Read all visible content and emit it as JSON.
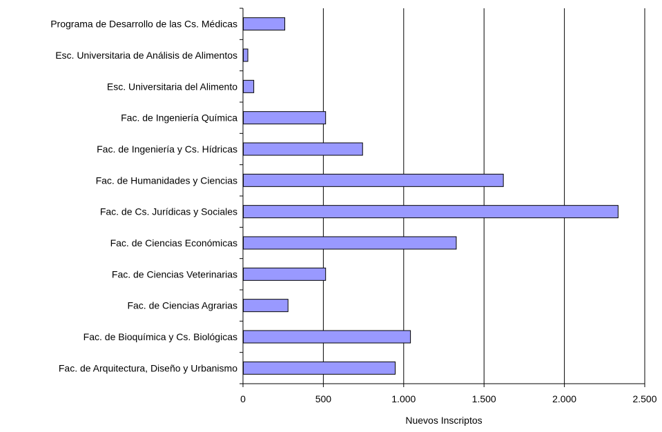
{
  "chart_data": {
    "type": "bar",
    "orientation": "horizontal",
    "categories": [
      "Programa de Desarrollo de las Cs. Médicas",
      "Esc. Universitaria de Análisis de Alimentos",
      "Esc. Universitaria del Alimento",
      "Fac. de Ingeniería Química",
      "Fac. de Ingeniería y Cs. Hídricas",
      "Fac. de Humanidades y Ciencias",
      "Fac. de Cs. Jurídicas y Sociales",
      "Fac. de Ciencias Económicas",
      "Fac. de Ciencias Veterinarias",
      "Fac. de Ciencias Agrarias",
      "Fac. de Bioquímica y Cs. Biológicas",
      "Fac. de Arquitectura, Diseño y Urbanismo"
    ],
    "values": [
      258,
      28,
      65,
      512,
      742,
      1618,
      2332,
      1325,
      512,
      278,
      1040,
      945
    ],
    "xlabel": "Nuevos Inscriptos",
    "ylabel": "",
    "xlim": [
      0,
      2500
    ],
    "xticks": [
      0,
      500,
      1000,
      1500,
      2000,
      2500
    ],
    "xtick_labels": [
      "0",
      "500",
      "1.000",
      "1.500",
      "2.000",
      "2.500"
    ],
    "grid": "vertical major gridlines",
    "legend": "none",
    "colors": {
      "bar_fill": "#9999ff",
      "bar_stroke": "#000000",
      "gridline": "#000000",
      "background": "#ffffff"
    }
  }
}
